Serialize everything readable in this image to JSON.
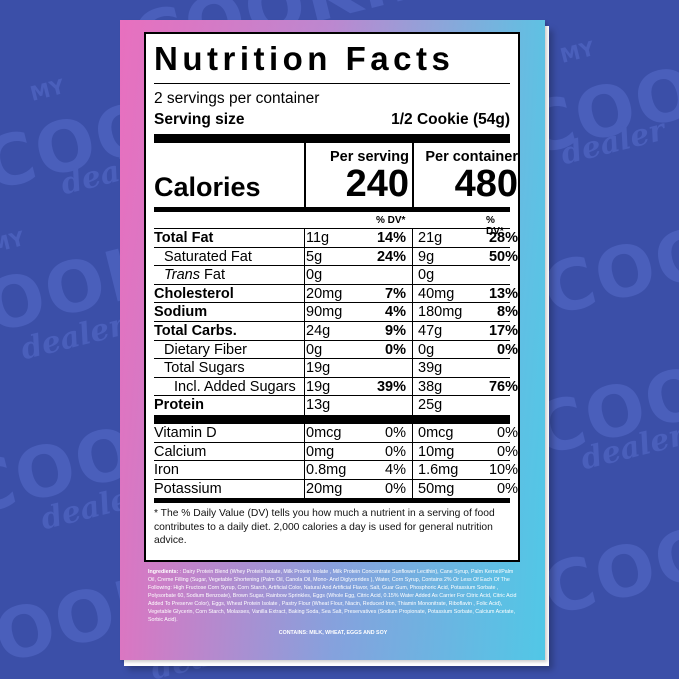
{
  "background": {
    "brand_word": "COOKiE",
    "brand_sub": "dealer",
    "brand_top": "MY",
    "color": "#3b4fa8"
  },
  "label": {
    "title": "Nutrition Facts",
    "servings_per_container": "2 servings per container",
    "serving_size_label": "Serving size",
    "serving_size_value": "1/2 Cookie (54g)",
    "calories_label": "Calories",
    "per_serving_label": "Per serving",
    "per_container_label": "Per container",
    "calories_per_serving": "240",
    "calories_per_container": "480",
    "dv_header": "% DV*",
    "nutrients": [
      {
        "name": "Total Fat",
        "bold": true,
        "indent": 0,
        "amt1": "11g",
        "dv1": "14%",
        "amt2": "21g",
        "dv2": "28%"
      },
      {
        "name": "Saturated Fat",
        "bold": false,
        "indent": 1,
        "amt1": "5g",
        "dv1": "24%",
        "amt2": "9g",
        "dv2": "50%"
      },
      {
        "name_italic": "Trans",
        "name": "Fat",
        "bold": false,
        "indent": 1,
        "amt1": "0g",
        "dv1": "",
        "amt2": "0g",
        "dv2": ""
      },
      {
        "name": "Cholesterol",
        "bold": true,
        "indent": 0,
        "amt1": "20mg",
        "dv1": "7%",
        "amt2": "40mg",
        "dv2": "13%"
      },
      {
        "name": "Sodium",
        "bold": true,
        "indent": 0,
        "amt1": "90mg",
        "dv1": "4%",
        "amt2": "180mg",
        "dv2": "8%"
      },
      {
        "name": "Total Carbs.",
        "bold": true,
        "indent": 0,
        "amt1": "24g",
        "dv1": "9%",
        "amt2": "47g",
        "dv2": "17%"
      },
      {
        "name": "Dietary Fiber",
        "bold": false,
        "indent": 1,
        "amt1": "0g",
        "dv1": "0%",
        "amt2": "0g",
        "dv2": "0%"
      },
      {
        "name": "Total Sugars",
        "bold": false,
        "indent": 1,
        "amt1": "19g",
        "dv1": "",
        "amt2": "39g",
        "dv2": ""
      },
      {
        "name": "Incl. Added Sugars",
        "bold": false,
        "indent": 2,
        "amt1": "19g",
        "dv1": "39%",
        "amt2": "38g",
        "dv2": "76%"
      },
      {
        "name": "Protein",
        "bold": true,
        "indent": 0,
        "amt1": "13g",
        "dv1": "",
        "amt2": "25g",
        "dv2": ""
      }
    ],
    "vitamins": [
      {
        "name": "Vitamin D",
        "amt1": "0mcg",
        "dv1": "0%",
        "amt2": "0mcg",
        "dv2": "0%"
      },
      {
        "name": "Calcium",
        "amt1": "0mg",
        "dv1": "0%",
        "amt2": "10mg",
        "dv2": "0%"
      },
      {
        "name": "Iron",
        "amt1": "0.8mg",
        "dv1": "4%",
        "amt2": "1.6mg",
        "dv2": "10%"
      },
      {
        "name": "Potassium",
        "amt1": "20mg",
        "dv1": "0%",
        "amt2": "50mg",
        "dv2": "0%"
      }
    ],
    "footnote": "* The % Daily Value (DV) tells you how much a nutrient in a serving of food contributes to a daily diet. 2,000 calories a day is used for general nutrition advice."
  },
  "ingredients": {
    "label": "Ingredients:",
    "text": " : Dairy Protein Blend (Whey Protein Isolate, Milk Protein Isolate , Milk Protein Concentrate Sunflower Lecithin), Cane Syrup, Palm Kernel/Palm Oil, Creme Filling (Sugar, Vegetable Shortening (Palm Oil, Canola Oil, Mono- And Diglycerides ), Water, Corn Syrup, Contains 2% Or Less Of Each Of The Following: High Fructose Corn Syrup, Corn Starch, Artificial Color, Natural And Artificial Flavor, Salt, Guar Gum, Phosphoric Acid, Potassium Sorbate , Polysorbate 60, Sodium Benzoate), Brown Sugar, Rainbow Sprinkles, Eggs (Whole Egg, Citric Acid, 0.15% Water Added As Carrier For Citric Acid, Citric Acid Added To Preserve Color), Eggs, Wheat Protein Isolate , Pastry Flour (Wheat Flour, Niacin, Reduced Iron, Thiamin Mononitrate, Riboflavin , Folic Acid), Vegetable Glycerin, Corn Starch, Molasses, Vanilla Extract, Baking Soda, Sea Salt, Preservatives (Sodium Propionate, Potassium Sorbate, Calcium Acetate, Sorbic Acid).",
    "contains": "CONTAINS: MILK, WHEAT, EGGS AND SOY"
  }
}
